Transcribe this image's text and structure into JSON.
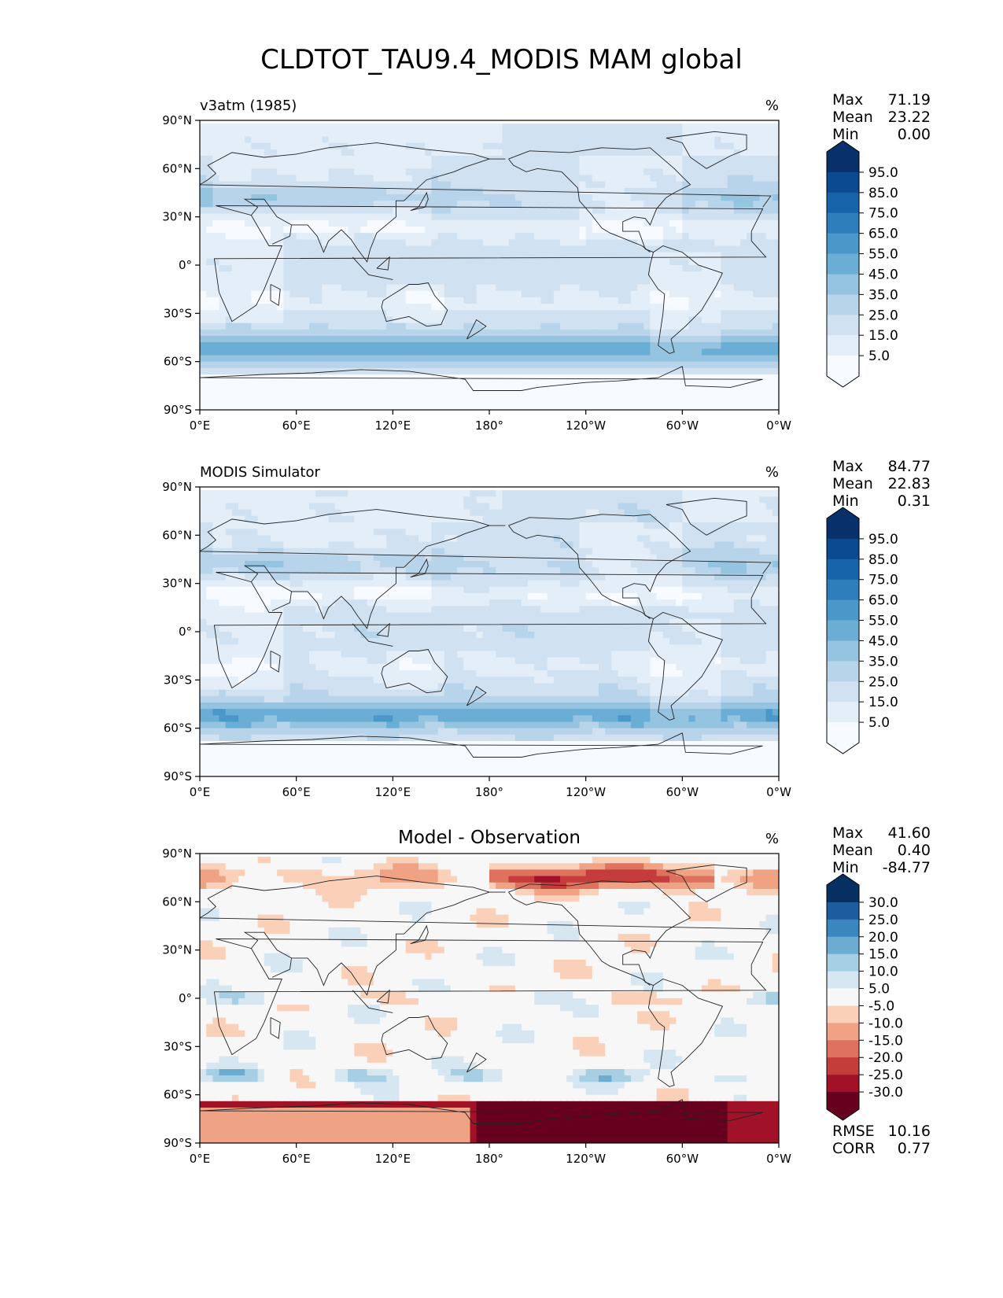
{
  "title": "CLDTOT_TAU9.4_MODIS MAM global",
  "map_axes": {
    "lat_ticks": [
      "90°N",
      "60°N",
      "30°N",
      "0°",
      "30°S",
      "60°S",
      "90°S"
    ],
    "lon_ticks": [
      "0°E",
      "60°E",
      "120°E",
      "180°",
      "120°W",
      "60°W",
      "0°W"
    ]
  },
  "colors": {
    "blues": [
      "#f7fbff",
      "#e3eef9",
      "#d0e2f2",
      "#b7d4ea",
      "#94c4df",
      "#6aaed6",
      "#4a98c9",
      "#2e7ebc",
      "#1864aa",
      "#0a4a90",
      "#08306b"
    ],
    "diverging": [
      "#67001f",
      "#a11228",
      "#c43c3c",
      "#de725f",
      "#f0a285",
      "#fbd0b9",
      "#f7f7f7",
      "#d6e7f1",
      "#a7cfe4",
      "#6bacd0",
      "#3a87bd",
      "#1c5c9f",
      "#053061"
    ]
  },
  "panels": [
    {
      "id": "model",
      "left_title": "v3atm (1985)",
      "center_title": "",
      "units": "%",
      "stats": [
        {
          "label": "Max",
          "value": "71.19"
        },
        {
          "label": "Mean",
          "value": "23.22"
        },
        {
          "label": "Min",
          "value": "0.00"
        }
      ],
      "colorbar": {
        "scheme": "blues",
        "ticks": [
          "95.0",
          "85.0",
          "75.0",
          "65.0",
          "55.0",
          "45.0",
          "35.0",
          "25.0",
          "15.0",
          "5.0"
        ]
      }
    },
    {
      "id": "obs",
      "left_title": "MODIS Simulator",
      "center_title": "",
      "units": "%",
      "stats": [
        {
          "label": "Max",
          "value": "84.77"
        },
        {
          "label": "Mean",
          "value": "22.83"
        },
        {
          "label": "Min",
          "value": "0.31"
        }
      ],
      "colorbar": {
        "scheme": "blues",
        "ticks": [
          "95.0",
          "85.0",
          "75.0",
          "65.0",
          "55.0",
          "45.0",
          "35.0",
          "25.0",
          "15.0",
          "5.0"
        ]
      }
    },
    {
      "id": "diff",
      "left_title": "",
      "center_title": "Model - Observation",
      "units": "%",
      "stats": [
        {
          "label": "Max",
          "value": "41.60"
        },
        {
          "label": "Mean",
          "value": "0.40"
        },
        {
          "label": "Min",
          "value": "-84.77"
        }
      ],
      "colorbar": {
        "scheme": "diverging",
        "ticks": [
          "30.0",
          "25.0",
          "20.0",
          "15.0",
          "10.0",
          "5.0",
          "-5.0",
          "-10.0",
          "-15.0",
          "-20.0",
          "-25.0",
          "-30.0"
        ]
      },
      "extra_stats": [
        {
          "label": "RMSE",
          "value": "10.16"
        },
        {
          "label": "CORR",
          "value": "0.77"
        }
      ]
    }
  ]
}
